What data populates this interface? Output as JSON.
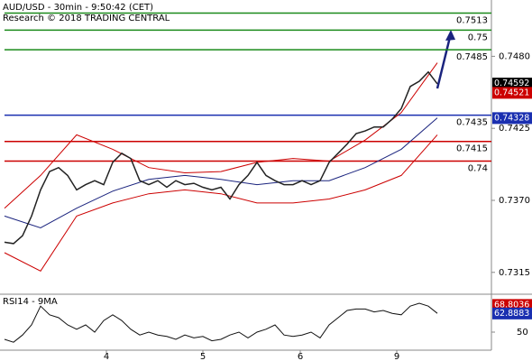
{
  "chart_data": {
    "type": "line",
    "title": "AUD/USD - 30min - 9:50:42 (CET)",
    "subtitle": "Research © 2018 TRADING CENTRAL",
    "x": [
      0,
      1,
      2,
      3,
      4,
      5,
      6,
      7,
      8,
      9,
      10,
      11,
      12,
      13,
      14,
      15,
      16,
      17,
      18,
      19,
      20,
      21,
      22,
      23,
      24,
      25,
      26,
      27,
      28,
      29,
      30,
      31,
      32,
      33,
      34,
      35,
      36,
      37,
      38,
      39,
      40,
      41,
      42,
      43,
      44,
      45,
      46,
      47,
      48
    ],
    "xlim": [
      -0.5,
      54
    ],
    "xticks": [
      {
        "value": 11.3,
        "label": "4"
      },
      {
        "value": 22,
        "label": "5"
      },
      {
        "value": 32.8,
        "label": "6"
      },
      {
        "value": 43.5,
        "label": "9"
      }
    ],
    "ylim": [
      0.7299,
      0.7523
    ],
    "yticks": [
      0.7315,
      {
        "value": 0.737,
        "label": "0.7370"
      },
      0.7425,
      {
        "value": 0.748,
        "label": "0.7480"
      }
    ],
    "price": {
      "color": "#222222",
      "values": [
        0.7338,
        0.7337,
        0.7343,
        0.7358,
        0.7378,
        0.7392,
        0.7395,
        0.7389,
        0.7378,
        0.7382,
        0.7385,
        0.7382,
        0.7399,
        0.7406,
        0.7402,
        0.7385,
        0.7382,
        0.7385,
        0.738,
        0.7385,
        0.7382,
        0.7383,
        0.738,
        0.7378,
        0.738,
        0.7371,
        0.7382,
        0.7389,
        0.7399,
        0.7389,
        0.7385,
        0.7382,
        0.7382,
        0.7385,
        0.7382,
        0.7385,
        0.7399,
        0.7406,
        0.7413,
        0.7421,
        0.7423,
        0.7426,
        0.7426,
        0.7432,
        0.744,
        0.7457,
        0.7461,
        0.7468,
        0.7459
      ]
    },
    "bands_x": [
      0,
      4,
      8,
      12,
      16,
      20,
      24,
      28,
      32,
      36,
      40,
      44,
      48
    ],
    "moving_average": {
      "color": "#1a237e",
      "values": [
        0.7358,
        0.7349,
        0.7364,
        0.7377,
        0.7386,
        0.7389,
        0.7386,
        0.7382,
        0.7385,
        0.7385,
        0.7395,
        0.7409,
        0.7433
      ]
    },
    "upper_band": {
      "color": "#cc0000",
      "values": [
        0.7364,
        0.7389,
        0.742,
        0.7409,
        0.7395,
        0.7391,
        0.7392,
        0.7399,
        0.7402,
        0.74,
        0.7416,
        0.7437,
        0.7475
      ]
    },
    "lower_band": {
      "color": "#cc0000",
      "values": [
        0.733,
        0.7316,
        0.7358,
        0.7368,
        0.7375,
        0.7378,
        0.7375,
        0.7368,
        0.7368,
        0.7371,
        0.7378,
        0.7389,
        0.742
      ]
    },
    "levels": [
      {
        "value": 0.7513,
        "color": "#1a8a1a"
      },
      {
        "value": 0.75,
        "color": "#1a8a1a"
      },
      {
        "value": 0.7485,
        "color": "#1a8a1a"
      },
      {
        "value": 0.7435,
        "color": "#1a2fb0"
      },
      {
        "value": 0.7415,
        "color": "#cc0000"
      },
      {
        "value": 0.74,
        "color": "#cc0000"
      }
    ],
    "price_markers": [
      {
        "value": 0.74592,
        "color": "#000000"
      },
      {
        "value": 0.74521,
        "color": "#cc0000"
      },
      {
        "value": 0.74328,
        "color": "#1a2fb0"
      }
    ],
    "rsi": {
      "title": "RSI14 - 9MA",
      "color": "#111111",
      "ylim": [
        37.5,
        75.6
      ],
      "yticks": [
        50
      ],
      "values": [
        45,
        43,
        48,
        55,
        68,
        62,
        60,
        55,
        52,
        55,
        50,
        58,
        62,
        58,
        52,
        48,
        50,
        48,
        47,
        45,
        48,
        46,
        47,
        44,
        45,
        48,
        50,
        46,
        50,
        52,
        55,
        48,
        47,
        48,
        50,
        46,
        55,
        60,
        65,
        66,
        66,
        64,
        65,
        63,
        62,
        68,
        70,
        68,
        63
      ],
      "markers": [
        {
          "value": 68.8036,
          "color": "#cc0000"
        },
        {
          "value": 62.8883,
          "color": "#1a2fb0"
        }
      ]
    }
  }
}
